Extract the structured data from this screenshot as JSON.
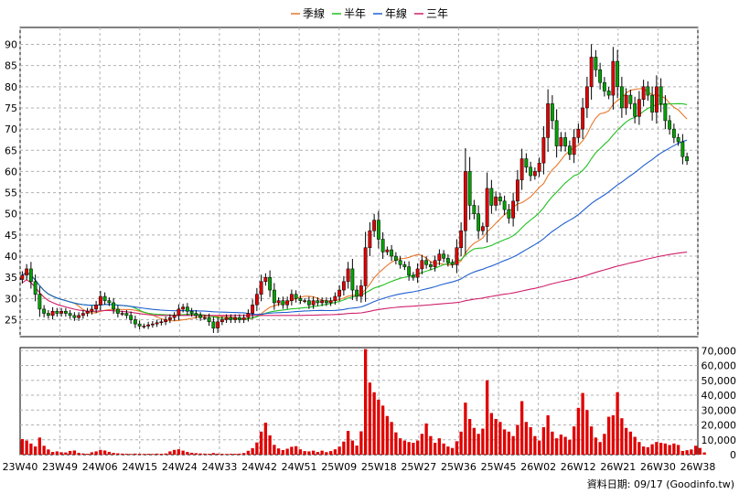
{
  "legend": [
    {
      "label": "季線",
      "color": "#e8782a"
    },
    {
      "label": "半年",
      "color": "#20c020"
    },
    {
      "label": "年線",
      "color": "#2060d0"
    },
    {
      "label": "三年",
      "color": "#d0206a"
    }
  ],
  "footer": "資料日期: 09/17 (Goodinfo.tw)",
  "colors": {
    "up": "#e00000",
    "down": "#00a000",
    "volume": "#e00000",
    "grid": "#b0b0b0",
    "axis": "#000000"
  },
  "chart_data": [
    {
      "type": "candlestick",
      "title": "",
      "ylim": [
        21,
        94
      ],
      "yticks": [
        25,
        30,
        35,
        40,
        45,
        50,
        55,
        60,
        65,
        70,
        75,
        80,
        85,
        90
      ],
      "xticks": [
        "23W40",
        "23W49",
        "24W06",
        "24W15",
        "24W24",
        "24W33",
        "24W42",
        "24W51",
        "25W09",
        "25W18",
        "25W27",
        "25W36",
        "25W45",
        "26W02",
        "26W12",
        "26W21",
        "26W30",
        "26W38"
      ],
      "grid": true,
      "weeks": 156,
      "close": [
        35.5,
        37.0,
        34.0,
        31.0,
        27.5,
        26.5,
        26.0,
        27.0,
        26.5,
        27.0,
        26.5,
        26.0,
        25.5,
        26.0,
        26.5,
        27.0,
        27.5,
        28.5,
        30.5,
        29.5,
        29.0,
        27.5,
        26.5,
        26.5,
        26.0,
        25.0,
        24.0,
        23.5,
        23.5,
        23.8,
        24.0,
        24.3,
        24.5,
        25.0,
        25.5,
        26.0,
        27.5,
        28.0,
        27.0,
        26.5,
        26.0,
        25.5,
        25.5,
        24.5,
        23.0,
        24.5,
        25.0,
        25.5,
        25.0,
        25.5,
        25.0,
        25.5,
        26.5,
        28.5,
        31.0,
        34.0,
        35.0,
        32.0,
        29.0,
        29.5,
        28.5,
        29.5,
        31.0,
        30.0,
        29.5,
        29.5,
        28.5,
        29.5,
        29.0,
        29.5,
        29.0,
        29.5,
        30.5,
        32.0,
        34.0,
        37.0,
        32.0,
        30.5,
        33.0,
        42.0,
        46.0,
        48.5,
        44.0,
        41.0,
        41.5,
        40.0,
        39.0,
        38.0,
        37.5,
        35.5,
        35.0,
        37.0,
        39.0,
        38.0,
        37.5,
        39.0,
        40.5,
        39.5,
        38.5,
        38.0,
        42.0,
        46.0,
        60.0,
        52.0,
        50.0,
        46.0,
        47.0,
        56.0,
        52.0,
        54.0,
        53.0,
        51.0,
        49.0,
        53.0,
        58.0,
        63.0,
        61.0,
        59.0,
        60.0,
        62.0,
        68.0,
        76.0,
        72.0,
        66.0,
        68.0,
        66.0,
        64.0,
        68.0,
        70.0,
        75.0,
        80.0,
        87.0,
        84.0,
        81.0,
        79.0,
        78.0,
        86.0,
        80.0,
        75.0,
        78.0,
        76.0,
        73.0,
        77.0,
        80.0,
        78.0,
        74.0,
        80.0,
        76.0,
        72.0,
        70.0,
        68.0,
        67.0,
        63.5,
        62.5
      ],
      "volume_panel": {
        "ylim": [
          0,
          72000
        ],
        "yticks": [
          0,
          10000,
          20000,
          30000,
          40000,
          50000,
          60000,
          70000
        ],
        "yticklabels": [
          "0",
          "10,000",
          "20,000",
          "30,000",
          "40,000",
          "50,000",
          "60,000",
          "70,000"
        ],
        "values": [
          10500,
          9500,
          7500,
          5500,
          11500,
          6000,
          3500,
          1800,
          2200,
          1600,
          1500,
          2500,
          2800,
          1200,
          800,
          600,
          1600,
          2200,
          3200,
          2800,
          1900,
          1200,
          900,
          700,
          600,
          500,
          700,
          600,
          500,
          600,
          500,
          700,
          600,
          800,
          2200,
          3200,
          3600,
          2700,
          1800,
          1300,
          1000,
          800,
          700,
          600,
          1100,
          700,
          600,
          500,
          600,
          600,
          700,
          1100,
          2600,
          4400,
          8200,
          15500,
          21500,
          13000,
          6600,
          4200,
          3100,
          4000,
          5300,
          5700,
          3600,
          2400,
          2200,
          2700,
          1800,
          2700,
          1700,
          2400,
          3600,
          5400,
          8800,
          16000,
          9500,
          6100,
          15700,
          71000,
          48500,
          42000,
          37000,
          33000,
          26000,
          22000,
          15000,
          11000,
          9500,
          8500,
          8000,
          9500,
          14000,
          21000,
          12500,
          8000,
          11000,
          7500,
          5500,
          4500,
          9000,
          15500,
          35000,
          24000,
          18000,
          14000,
          17500,
          50000,
          28000,
          24000,
          22000,
          17000,
          15500,
          12500,
          20000,
          36000,
          22000,
          18500,
          12500,
          9500,
          18500,
          26500,
          15500,
          11000,
          13500,
          12000,
          10000,
          19000,
          31500,
          41500,
          30000,
          19000,
          11500,
          8500,
          14000,
          25500,
          26500,
          42000,
          24500,
          18000,
          15500,
          12000,
          8500,
          5500,
          5000,
          7000,
          8500,
          8000,
          7500,
          6500,
          7500,
          6500,
          2500,
          3000,
          3500,
          6000,
          4500,
          1500
        ]
      },
      "moving_averages": [
        {
          "name": "季線",
          "period": 13
        },
        {
          "name": "半年",
          "period": 26
        },
        {
          "name": "年線",
          "period": 52
        },
        {
          "name": "三年",
          "period": 156
        }
      ]
    }
  ]
}
